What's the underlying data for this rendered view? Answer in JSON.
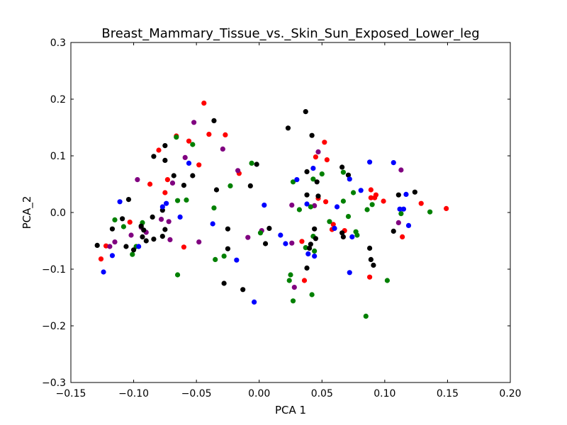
{
  "chart_data": {
    "type": "scatter",
    "title": "Breast_Mammary_Tissue_vs._Skin_Sun_Exposed_Lower_leg",
    "xlabel": "PCA 1",
    "ylabel": "PCA_2",
    "xlim": [
      -0.15,
      0.2
    ],
    "ylim": [
      -0.3,
      0.3
    ],
    "x_ticks": [
      -0.15,
      -0.1,
      -0.05,
      0.0,
      0.05,
      0.1,
      0.15,
      0.2
    ],
    "y_ticks": [
      -0.3,
      -0.2,
      -0.1,
      0.0,
      0.1,
      0.2,
      0.3
    ],
    "x_tick_labels": [
      "−0.15",
      "−0.10",
      "−0.05",
      "0.00",
      "0.05",
      "0.10",
      "0.15",
      "0.20"
    ],
    "y_tick_labels": [
      "−0.3",
      "−0.2",
      "−0.1",
      "0.0",
      "0.1",
      "0.2",
      "0.3"
    ],
    "grid": false,
    "series": [
      {
        "color": "#ff0000",
        "points": [
          [
            -0.044,
            0.193
          ],
          [
            -0.04,
            0.138
          ],
          [
            -0.027,
            0.137
          ],
          [
            -0.056,
            0.126
          ],
          [
            -0.066,
            0.135
          ],
          [
            -0.08,
            0.11
          ],
          [
            -0.073,
            0.058
          ],
          [
            -0.075,
            0.035
          ],
          [
            -0.048,
            0.084
          ],
          [
            -0.016,
            0.069
          ],
          [
            -0.087,
            0.05
          ],
          [
            -0.103,
            -0.017
          ],
          [
            -0.126,
            -0.082
          ],
          [
            -0.122,
            -0.059
          ],
          [
            -0.06,
            -0.061
          ],
          [
            0.052,
            0.124
          ],
          [
            0.054,
            0.093
          ],
          [
            0.045,
            0.098
          ],
          [
            0.047,
            0.025
          ],
          [
            0.053,
            0.019
          ],
          [
            0.058,
            -0.03
          ],
          [
            0.059,
            -0.021
          ],
          [
            0.034,
            -0.051
          ],
          [
            0.036,
            -0.12
          ],
          [
            0.068,
            -0.032
          ],
          [
            0.089,
            0.04
          ],
          [
            0.089,
            0.026
          ],
          [
            0.092,
            0.026
          ],
          [
            0.099,
            0.02
          ],
          [
            0.093,
            0.031
          ],
          [
            0.088,
            -0.114
          ],
          [
            0.129,
            0.016
          ],
          [
            0.149,
            0.007
          ],
          [
            0.114,
            -0.043
          ]
        ]
      },
      {
        "color": "#800080",
        "points": [
          [
            -0.052,
            0.159
          ],
          [
            -0.029,
            0.112
          ],
          [
            -0.059,
            0.097
          ],
          [
            -0.069,
            0.052
          ],
          [
            -0.097,
            0.058
          ],
          [
            -0.017,
            0.074
          ],
          [
            -0.078,
            -0.012
          ],
          [
            -0.072,
            -0.016
          ],
          [
            -0.094,
            -0.026
          ],
          [
            -0.09,
            -0.035
          ],
          [
            -0.115,
            -0.052
          ],
          [
            -0.119,
            -0.06
          ],
          [
            -0.102,
            -0.04
          ],
          [
            -0.071,
            -0.048
          ],
          [
            -0.048,
            -0.052
          ],
          [
            -0.009,
            -0.044
          ],
          [
            0.002,
            -0.032
          ],
          [
            0.047,
            0.107
          ],
          [
            0.044,
            0.012
          ],
          [
            0.026,
            0.013
          ],
          [
            0.026,
            -0.054
          ],
          [
            0.028,
            -0.132
          ],
          [
            0.111,
            -0.018
          ],
          [
            0.113,
            0.075
          ]
        ]
      },
      {
        "color": "#008000",
        "points": [
          [
            -0.066,
            0.133
          ],
          [
            -0.053,
            0.12
          ],
          [
            -0.058,
            0.022
          ],
          [
            -0.065,
            0.021
          ],
          [
            -0.036,
            0.008
          ],
          [
            -0.023,
            0.047
          ],
          [
            -0.006,
            0.087
          ],
          [
            -0.115,
            -0.013
          ],
          [
            -0.108,
            -0.025
          ],
          [
            -0.098,
            -0.06
          ],
          [
            -0.101,
            -0.074
          ],
          [
            -0.093,
            -0.018
          ],
          [
            -0.065,
            -0.11
          ],
          [
            -0.035,
            -0.083
          ],
          [
            -0.028,
            -0.077
          ],
          [
            0.001,
            -0.036
          ],
          [
            0.027,
            0.054
          ],
          [
            0.043,
            0.059
          ],
          [
            0.05,
            0.068
          ],
          [
            0.041,
            0.01
          ],
          [
            0.032,
            0.005
          ],
          [
            0.056,
            -0.016
          ],
          [
            0.043,
            -0.042
          ],
          [
            0.037,
            -0.062
          ],
          [
            0.044,
            -0.068
          ],
          [
            0.025,
            -0.11
          ],
          [
            0.024,
            -0.12
          ],
          [
            0.042,
            -0.145
          ],
          [
            0.027,
            -0.156
          ],
          [
            0.067,
            0.071
          ],
          [
            0.071,
            -0.007
          ],
          [
            0.067,
            0.02
          ],
          [
            0.075,
            0.035
          ],
          [
            0.086,
            0.005
          ],
          [
            0.09,
            0.014
          ],
          [
            0.077,
            -0.034
          ],
          [
            0.078,
            -0.04
          ],
          [
            0.102,
            -0.12
          ],
          [
            0.085,
            -0.183
          ],
          [
            0.113,
            -0.002
          ],
          [
            0.136,
            0.001
          ]
        ]
      },
      {
        "color": "#000000",
        "points": [
          [
            -0.036,
            0.162
          ],
          [
            -0.075,
            0.118
          ],
          [
            -0.084,
            0.099
          ],
          [
            -0.075,
            0.092
          ],
          [
            -0.068,
            0.065
          ],
          [
            -0.053,
            0.065
          ],
          [
            -0.06,
            0.048
          ],
          [
            -0.034,
            0.04
          ],
          [
            -0.104,
            0.023
          ],
          [
            -0.077,
            0.004
          ],
          [
            -0.002,
            0.085
          ],
          [
            -0.007,
            0.047
          ],
          [
            -0.085,
            -0.008
          ],
          [
            -0.109,
            -0.011
          ],
          [
            -0.117,
            -0.029
          ],
          [
            -0.094,
            -0.024
          ],
          [
            -0.092,
            -0.031
          ],
          [
            -0.075,
            -0.03
          ],
          [
            -0.093,
            -0.043
          ],
          [
            -0.09,
            -0.05
          ],
          [
            -0.084,
            -0.047
          ],
          [
            -0.077,
            -0.042
          ],
          [
            -0.129,
            -0.058
          ],
          [
            -0.106,
            -0.06
          ],
          [
            -0.1,
            -0.066
          ],
          [
            -0.025,
            -0.029
          ],
          [
            -0.025,
            -0.064
          ],
          [
            -0.028,
            -0.125
          ],
          [
            -0.013,
            -0.136
          ],
          [
            0.005,
            -0.055
          ],
          [
            0.008,
            -0.028
          ],
          [
            0.023,
            0.149
          ],
          [
            0.037,
            0.178
          ],
          [
            0.042,
            0.136
          ],
          [
            0.038,
            0.072
          ],
          [
            0.046,
            0.054
          ],
          [
            0.038,
            0.031
          ],
          [
            0.047,
            0.029
          ],
          [
            0.044,
            -0.029
          ],
          [
            0.045,
            -0.046
          ],
          [
            0.041,
            -0.056
          ],
          [
            0.04,
            -0.063
          ],
          [
            0.038,
            -0.098
          ],
          [
            0.066,
            0.08
          ],
          [
            0.071,
            0.066
          ],
          [
            0.066,
            -0.036
          ],
          [
            0.067,
            -0.043
          ],
          [
            0.088,
            -0.063
          ],
          [
            0.089,
            -0.083
          ],
          [
            0.091,
            -0.093
          ],
          [
            0.107,
            -0.033
          ],
          [
            0.111,
            0.031
          ],
          [
            0.124,
            0.036
          ]
        ]
      },
      {
        "color": "#0000ff",
        "points": [
          [
            -0.056,
            0.087
          ],
          [
            -0.111,
            0.019
          ],
          [
            -0.077,
            0.01
          ],
          [
            -0.074,
            0.016
          ],
          [
            -0.063,
            -0.008
          ],
          [
            -0.037,
            -0.02
          ],
          [
            -0.096,
            -0.06
          ],
          [
            -0.117,
            -0.076
          ],
          [
            -0.124,
            -0.105
          ],
          [
            -0.018,
            -0.084
          ],
          [
            -0.004,
            -0.158
          ],
          [
            0.004,
            0.013
          ],
          [
            0.017,
            -0.04
          ],
          [
            0.021,
            -0.055
          ],
          [
            0.03,
            0.058
          ],
          [
            0.043,
            0.078
          ],
          [
            0.038,
            0.015
          ],
          [
            0.062,
            0.01
          ],
          [
            0.06,
            -0.028
          ],
          [
            0.039,
            -0.073
          ],
          [
            0.044,
            -0.077
          ],
          [
            0.072,
            0.059
          ],
          [
            0.074,
            -0.043
          ],
          [
            0.072,
            -0.106
          ],
          [
            0.081,
            0.039
          ],
          [
            0.088,
            0.089
          ],
          [
            0.107,
            0.088
          ],
          [
            0.112,
            0.006
          ],
          [
            0.115,
            0.006
          ],
          [
            0.117,
            0.032
          ],
          [
            0.119,
            -0.023
          ]
        ]
      }
    ]
  }
}
